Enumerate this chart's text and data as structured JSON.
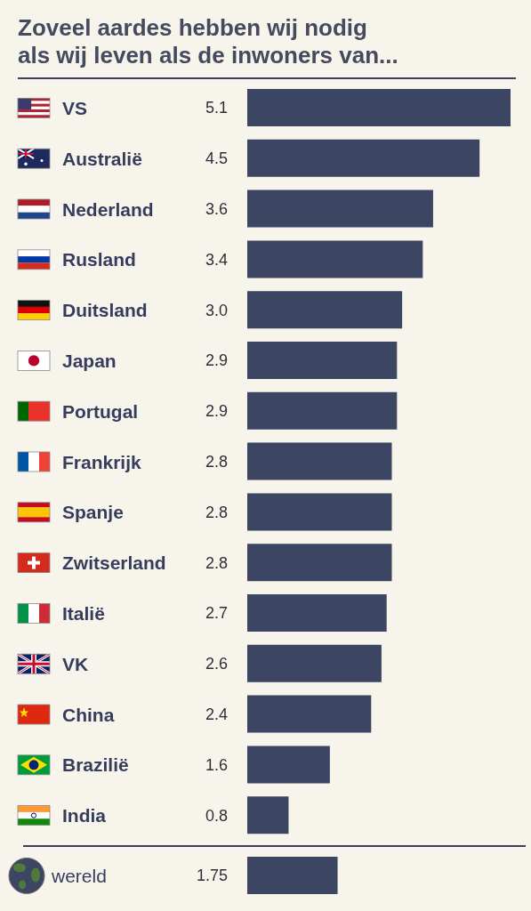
{
  "chart_data": [
    {
      "type": "bar",
      "orientation": "horizontal",
      "title": "Zoveel aardes hebben wij nodig\nals wij leven als de inwoners van...",
      "categories": [
        "VS",
        "Australië",
        "Nederland",
        "Rusland",
        "Duitsland",
        "Japan",
        "Portugal",
        "Frankrijk",
        "Spanje",
        "Zwitserland",
        "Italië",
        "VK",
        "China",
        "Brazilië",
        "India"
      ],
      "values": [
        5.1,
        4.5,
        3.6,
        3.4,
        3.0,
        2.9,
        2.9,
        2.8,
        2.8,
        2.8,
        2.7,
        2.6,
        2.4,
        1.6,
        0.8
      ],
      "value_labels": [
        "5.1",
        "4.5",
        "3.6",
        "3.4",
        "3.0",
        "2.9",
        "2.9",
        "2.8",
        "2.8",
        "2.8",
        "2.7",
        "2.6",
        "2.4",
        "1.6",
        "0.8"
      ],
      "color": "#3c4562",
      "tick_labels": "y"
    },
    {
      "type": "bar",
      "orientation": "horizontal",
      "categories": [
        "wereld"
      ],
      "values": [
        1.75
      ],
      "value_labels": [
        "1.75"
      ],
      "color": "#3c4562",
      "tick_labels": "y"
    }
  ]
}
